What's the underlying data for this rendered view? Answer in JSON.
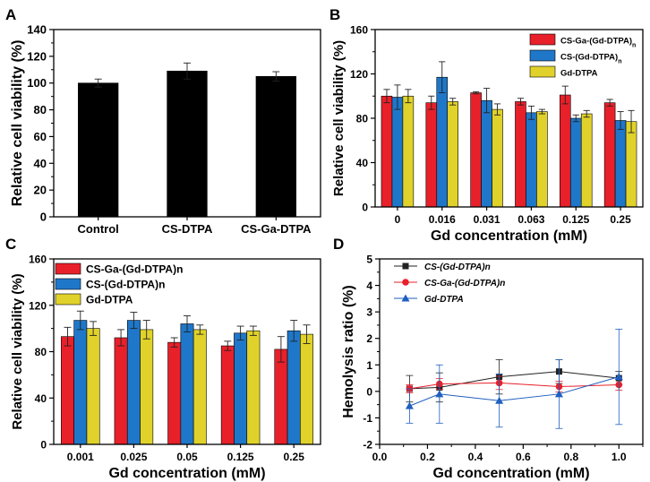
{
  "chart_data": [
    {
      "panel_label": "A",
      "type": "bar",
      "title": "",
      "xlabel": "",
      "ylabel": "Relative cell viability (%)",
      "ylim": [
        0,
        140
      ],
      "yticks": [
        0,
        20,
        40,
        60,
        80,
        100,
        120,
        140
      ],
      "categories": [
        "Control",
        "CS-DTPA",
        "CS-Ga-DTPA"
      ],
      "series": [
        {
          "name": "Relative cell viability",
          "color": "#000000",
          "values": [
            100,
            109,
            105
          ],
          "errors": [
            3,
            6,
            3.5
          ]
        }
      ],
      "legend": []
    },
    {
      "panel_label": "B",
      "type": "bar",
      "title": "",
      "xlabel": "Gd concentration (mM)",
      "ylabel": "Relative cell viability (%)",
      "ylim": [
        0,
        160
      ],
      "yticks": [
        0,
        40,
        80,
        120,
        160
      ],
      "categories": [
        "0",
        "0.016",
        "0.031",
        "0.063",
        "0.125",
        "0.25"
      ],
      "series": [
        {
          "name": "CS-Ga-(Gd-DTPA)",
          "subscript": "n",
          "color": "#e8202a",
          "values": [
            100,
            94,
            103,
            95,
            101,
            94
          ],
          "errors": [
            6,
            6,
            1,
            3,
            8,
            3
          ]
        },
        {
          "name": "CS-(Gd-DTPA)",
          "subscript": "n",
          "color": "#1f77c9",
          "values": [
            99,
            117,
            96,
            85,
            80,
            78
          ],
          "errors": [
            11,
            14,
            11,
            6,
            3,
            8
          ]
        },
        {
          "name": "Gd-DTPA",
          "subscript": "",
          "color": "#e0d22a",
          "values": [
            100,
            95,
            88,
            86,
            84,
            77
          ],
          "errors": [
            6,
            3,
            5,
            2,
            3,
            10
          ]
        }
      ],
      "legend": "top-right"
    },
    {
      "panel_label": "C",
      "type": "bar",
      "title": "",
      "xlabel": "Gd concentration (mM)",
      "ylabel": "Relative cell viability (%)",
      "ylim": [
        0,
        160
      ],
      "yticks": [
        0,
        40,
        80,
        120,
        160
      ],
      "categories": [
        "0.001",
        "0.025",
        "0.05",
        "0.125",
        "0.25"
      ],
      "series": [
        {
          "name": "CS-Ga-(Gd-DTPA)n",
          "color": "#e8202a",
          "values": [
            93,
            92,
            88,
            85,
            82
          ],
          "errors": [
            8,
            7,
            4,
            4,
            11
          ]
        },
        {
          "name": "CS-(Gd-DTPA)n",
          "color": "#1f77c9",
          "values": [
            107,
            107,
            104,
            96,
            98
          ],
          "errors": [
            8,
            7,
            7,
            6,
            9
          ]
        },
        {
          "name": "Gd-DTPA",
          "color": "#e0d22a",
          "values": [
            100,
            99,
            99,
            98,
            95
          ],
          "errors": [
            6,
            8,
            4,
            4,
            8
          ]
        }
      ],
      "legend": "top-left"
    },
    {
      "panel_label": "D",
      "type": "line",
      "title": "",
      "xlabel": "Gd concentration (mM)",
      "ylabel": "Hemolysis ratio (%)",
      "xlim": [
        0.0,
        1.1
      ],
      "xticks": [
        "0.0",
        "0.2",
        "0.4",
        "0.6",
        "0.8",
        "1.0"
      ],
      "ylim": [
        -2,
        5
      ],
      "yticks": [
        "-2",
        "-1",
        "0",
        "1",
        "2",
        "3",
        "4",
        "5"
      ],
      "x": [
        0.125,
        0.25,
        0.5,
        0.75,
        1.0
      ],
      "series": [
        {
          "name": "CS-(Gd-DTPA)n",
          "color": "#222222",
          "marker": "square",
          "values": [
            0.1,
            0.15,
            0.55,
            0.75,
            0.5
          ],
          "errors": [
            0.5,
            0.55,
            0.65,
            0.45,
            0.25
          ]
        },
        {
          "name": "CS-Ga-(Gd-DTPA)n",
          "color": "#e8202a",
          "marker": "circle",
          "values": [
            0.1,
            0.28,
            0.32,
            0.18,
            0.25
          ],
          "errors": [
            0.15,
            0.2,
            0.25,
            0.2,
            0.2
          ]
        },
        {
          "name": "Gd-DTPA",
          "color": "#1f5fbf",
          "marker": "triangle",
          "values": [
            -0.55,
            -0.1,
            -0.35,
            -0.1,
            0.55
          ],
          "errors": [
            0.65,
            1.1,
            1.0,
            1.3,
            1.8
          ]
        }
      ],
      "legend": "top-left"
    }
  ]
}
